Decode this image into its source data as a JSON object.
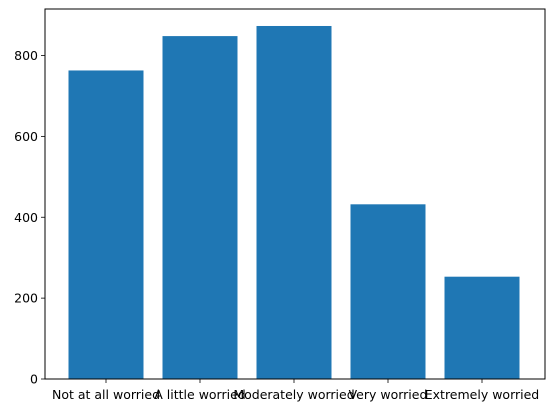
{
  "chart_data": {
    "type": "bar",
    "categories": [
      "Not at all worried",
      "A little worried",
      "Moderately worried",
      "Very worried",
      "Extremely worried"
    ],
    "values": [
      763,
      848,
      873,
      432,
      253
    ],
    "title": "",
    "xlabel": "",
    "ylabel": "",
    "ylim": [
      0,
      915
    ],
    "yticks": [
      0,
      200,
      400,
      600,
      800
    ],
    "grid": false,
    "legend": "none",
    "bar_color": "#1f77b4"
  }
}
